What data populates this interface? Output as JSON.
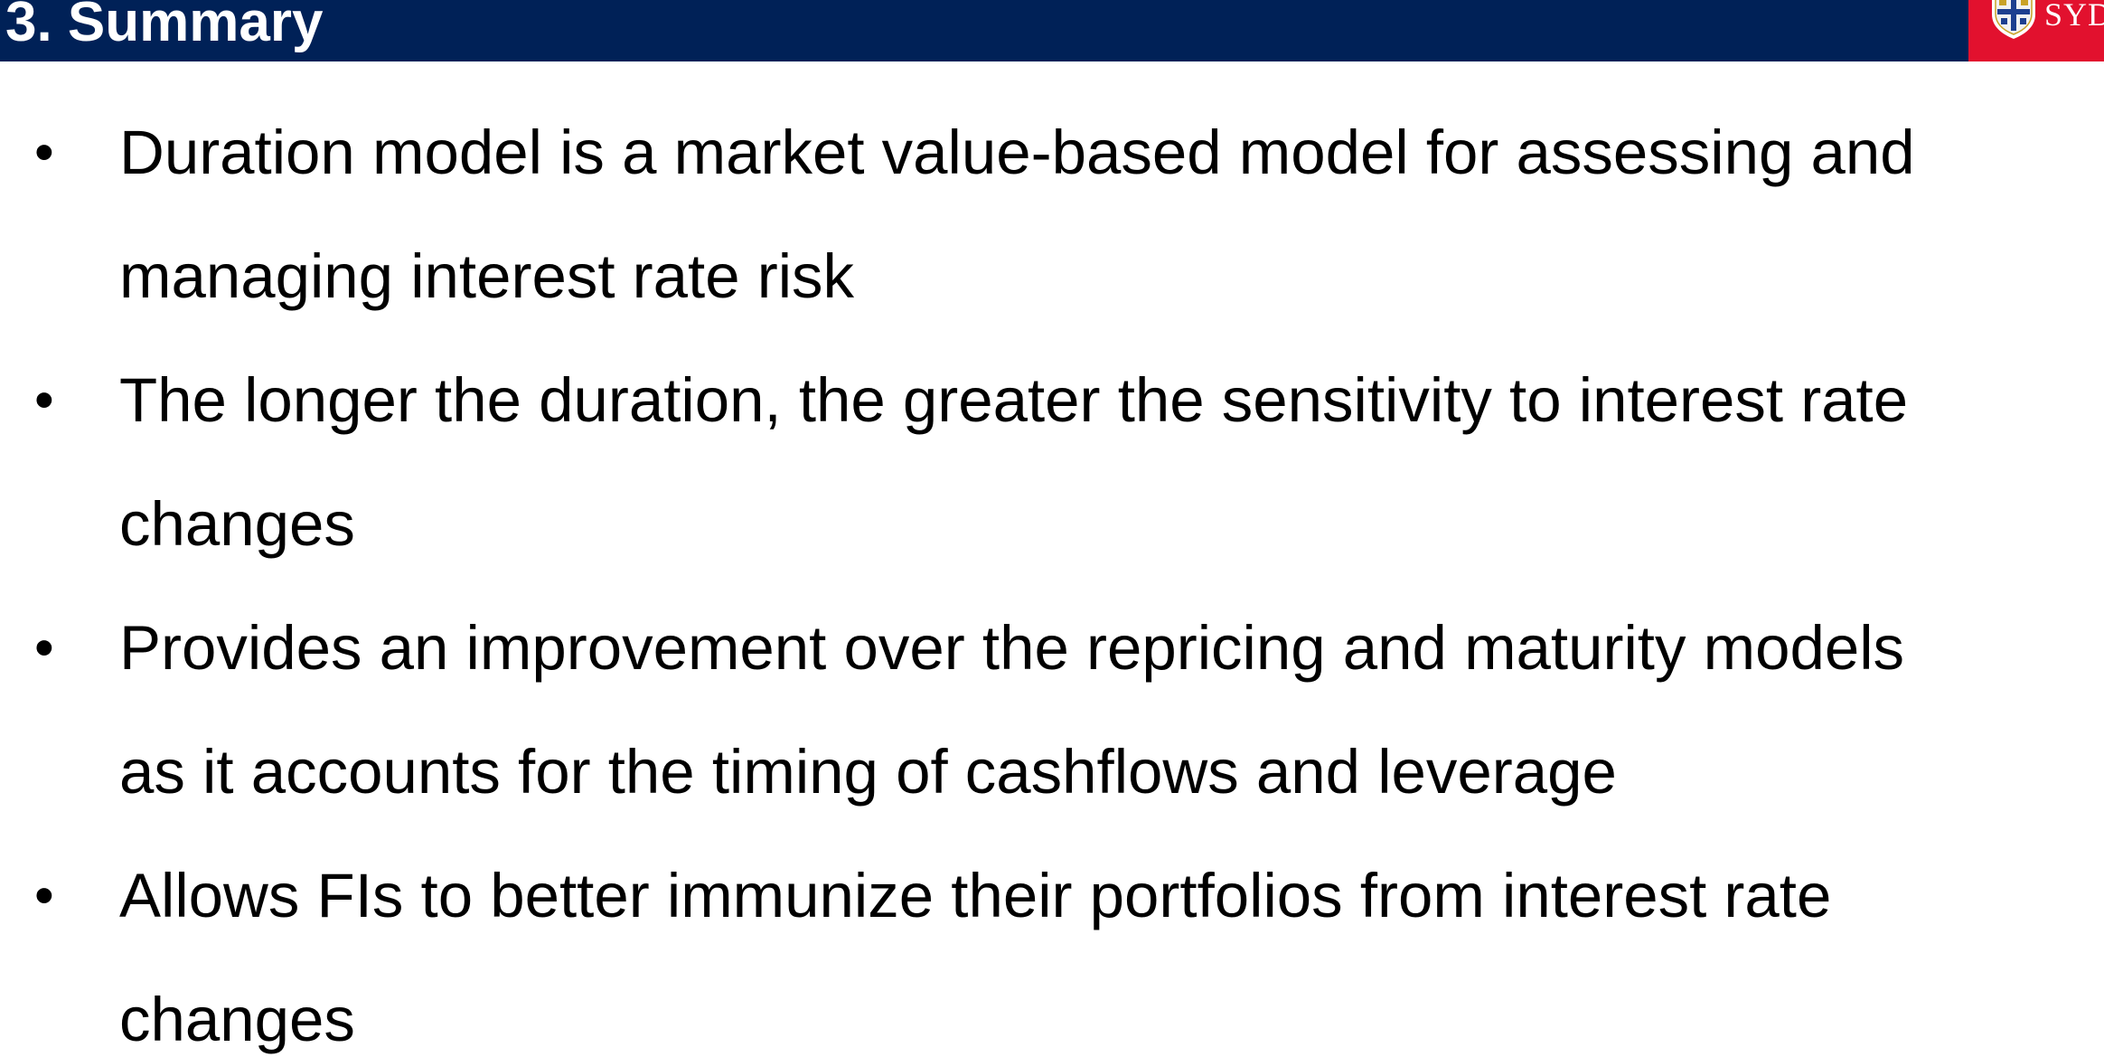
{
  "slide": {
    "title": "3. Summary",
    "logo": {
      "icon": "crest-icon",
      "text": "SYD",
      "colors": {
        "header": "#002157",
        "logo_bg": "#e2112e"
      }
    },
    "bullet_symbol": "•",
    "bullets": [
      {
        "lines": [
          "Duration model is a market value-based model for assessing and",
          "managing interest rate risk"
        ]
      },
      {
        "lines": [
          "The longer the duration, the greater the sensitivity to interest rate",
          "changes"
        ]
      },
      {
        "lines": [
          "Provides an improvement over the repricing and maturity models",
          "as it accounts for the timing of cashflows and leverage"
        ]
      },
      {
        "lines": [
          "Allows FIs to better immunize their portfolios from interest rate",
          "changes"
        ]
      }
    ]
  }
}
